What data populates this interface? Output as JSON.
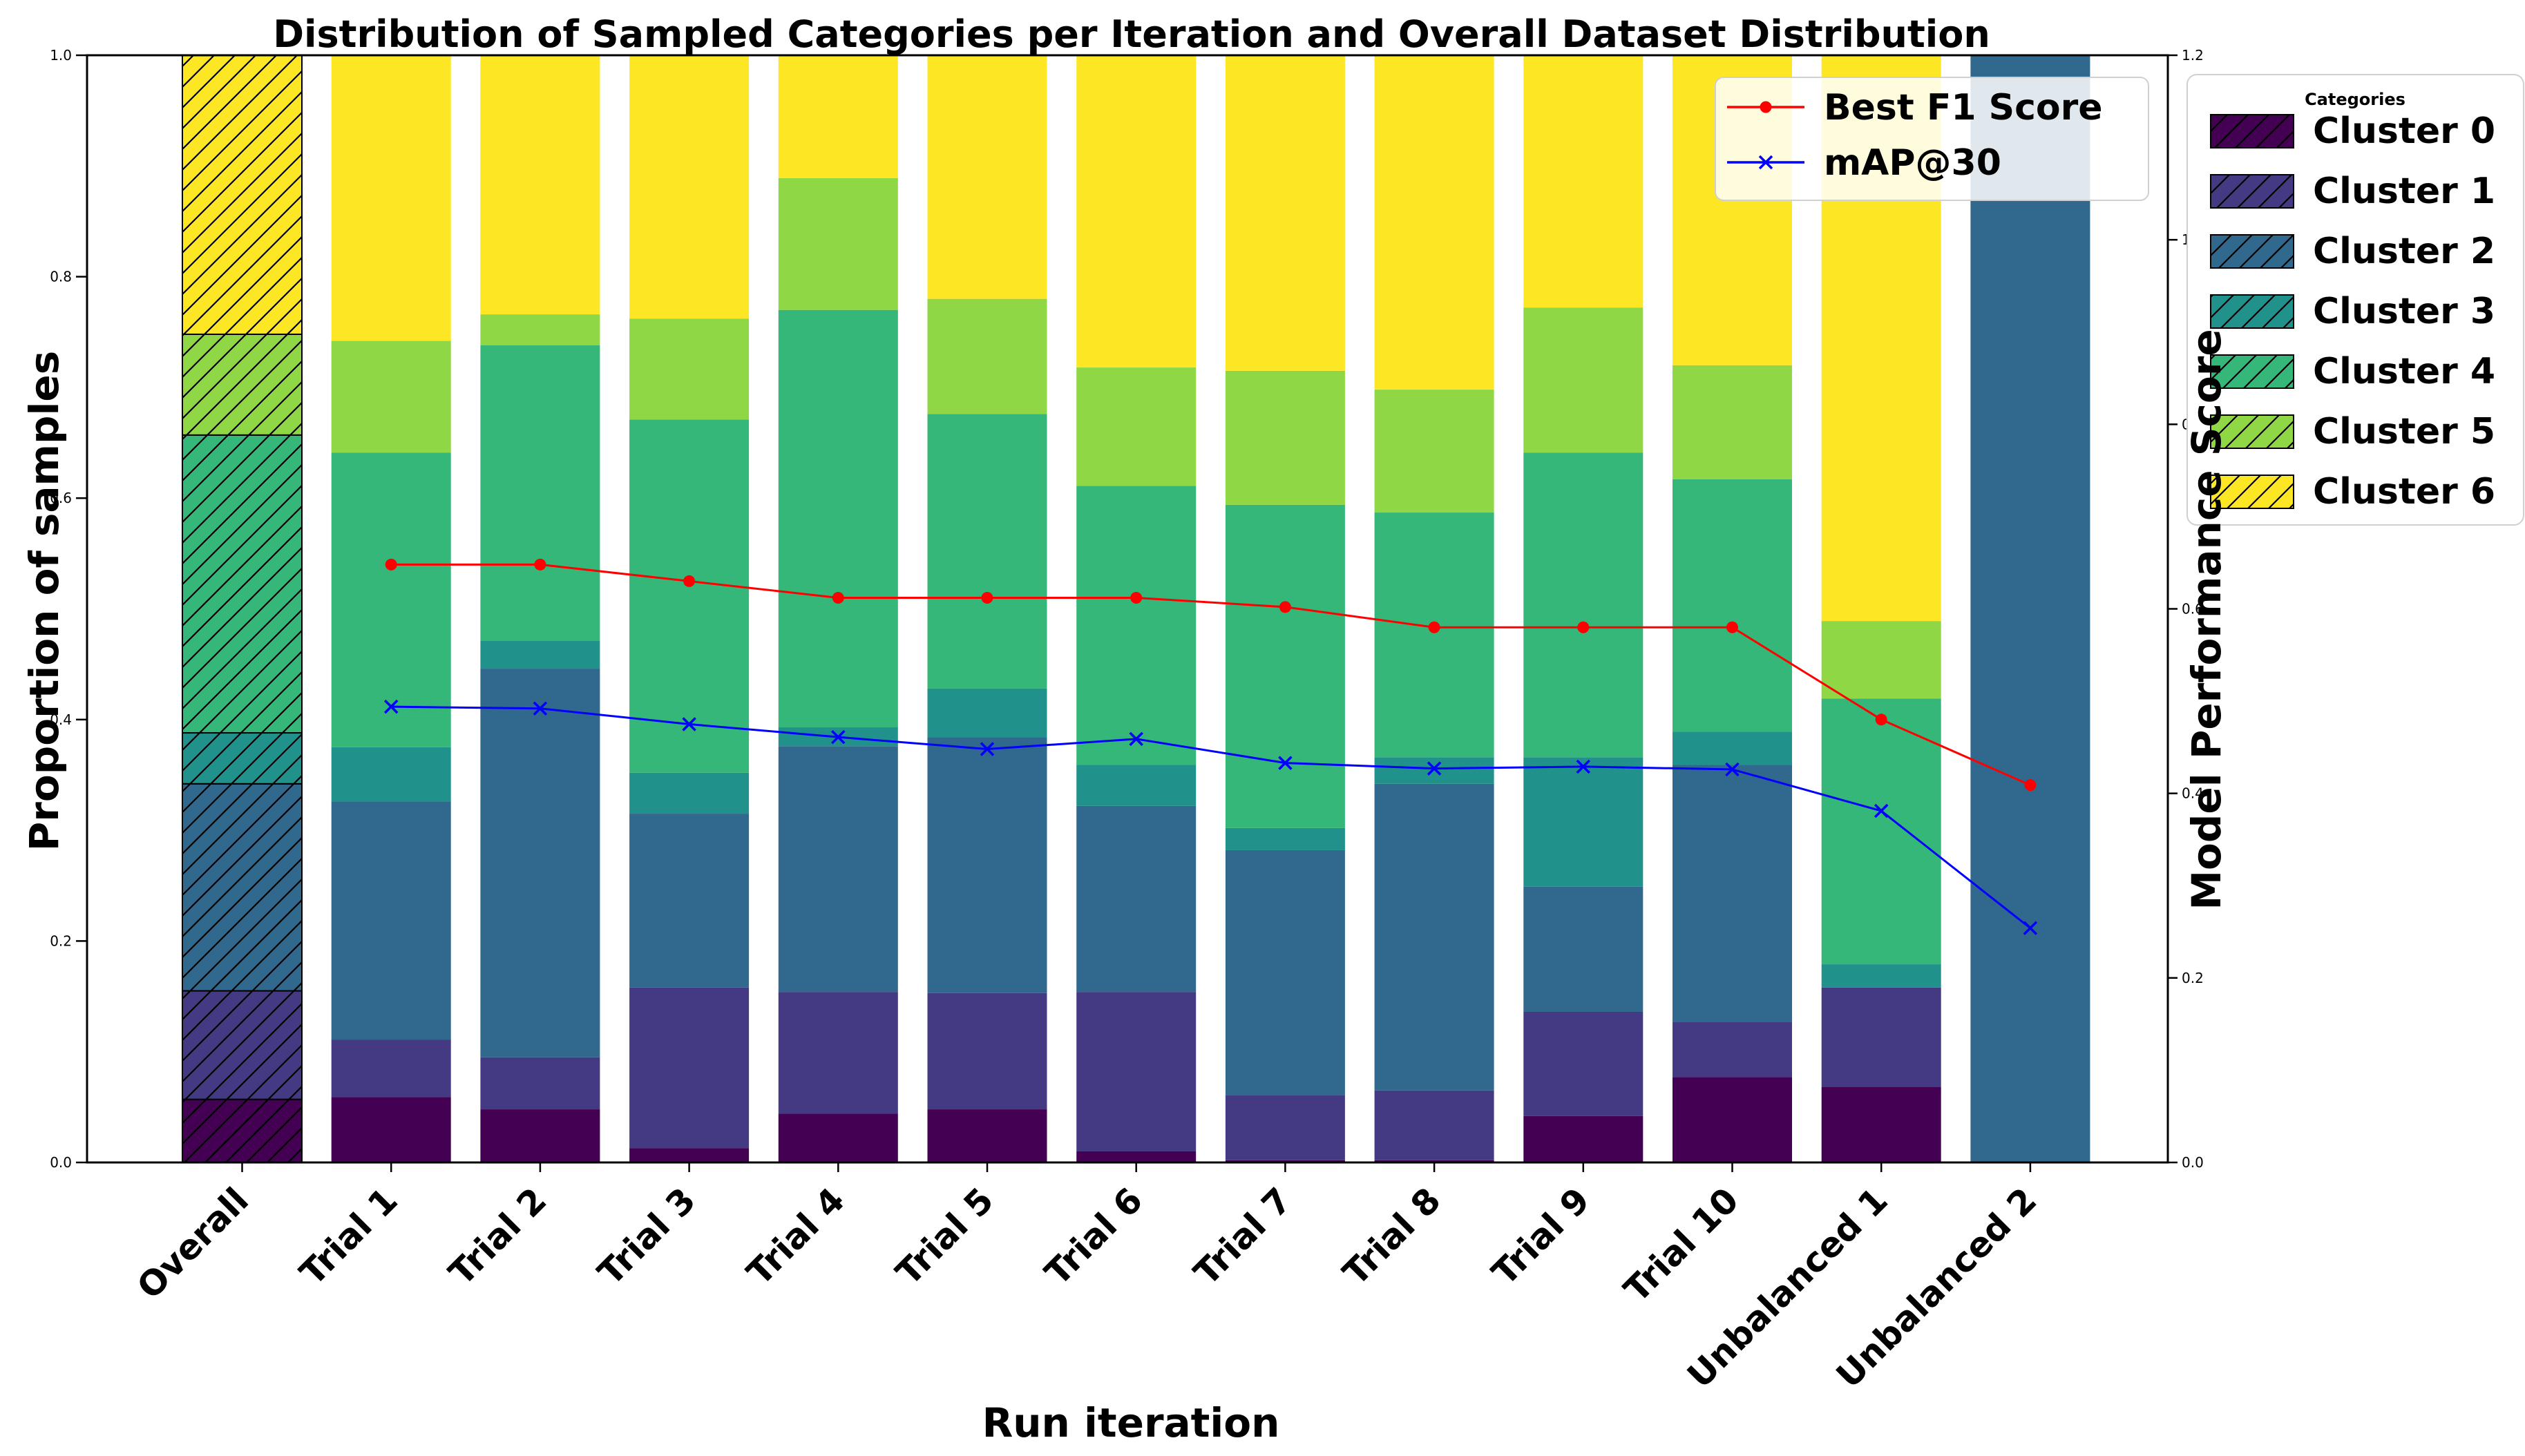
{
  "chart_data": {
    "type": "bar",
    "variant": "stacked-bars-with-overlay-lines",
    "title": "Distribution of Sampled Categories per Iteration and Overall Dataset Distribution",
    "xlabel": "Run iteration",
    "ylabel_left": "Proportion of samples",
    "ylabel_right": "Model Performance Score",
    "categories": [
      "Overall",
      "Trial 1",
      "Trial 2",
      "Trial 3",
      "Trial 4",
      "Trial 5",
      "Trial 6",
      "Trial 7",
      "Trial 8",
      "Trial 9",
      "Trial 10",
      "Unbalanced 1",
      "Unbalanced 2"
    ],
    "hatched_categories": [
      "Overall"
    ],
    "left_axis": {
      "lim": [
        0.0,
        1.0
      ],
      "tick_labels": [
        "0.0",
        "0.2",
        "0.4",
        "0.6",
        "0.8",
        "1.0"
      ],
      "tick_values": [
        0.0,
        0.2,
        0.4,
        0.6,
        0.8,
        1.0
      ]
    },
    "right_axis": {
      "lim": [
        0.0,
        1.2
      ],
      "tick_labels": [
        "0.0",
        "0.2",
        "0.4",
        "0.6",
        "0.8",
        "1.0",
        "1.2"
      ],
      "tick_values": [
        0.0,
        0.2,
        0.4,
        0.6,
        0.8,
        1.0,
        1.2
      ]
    },
    "cluster_legend_title": "Categories",
    "clusters": [
      {
        "name": "Cluster 0",
        "color": "#440154"
      },
      {
        "name": "Cluster 1",
        "color": "#443983"
      },
      {
        "name": "Cluster 2",
        "color": "#31688e"
      },
      {
        "name": "Cluster 3",
        "color": "#21918c"
      },
      {
        "name": "Cluster 4",
        "color": "#35b779"
      },
      {
        "name": "Cluster 5",
        "color": "#8fd744"
      },
      {
        "name": "Cluster 6",
        "color": "#fde725"
      }
    ],
    "stacks": {
      "Overall": [
        0.057,
        0.098,
        0.187,
        0.046,
        0.269,
        0.091,
        0.252
      ],
      "Trial 1": [
        0.059,
        0.052,
        0.215,
        0.049,
        0.266,
        0.101,
        0.258
      ],
      "Trial 2": [
        0.048,
        0.047,
        0.351,
        0.025,
        0.267,
        0.028,
        0.234
      ],
      "Trial 3": [
        0.013,
        0.145,
        0.157,
        0.037,
        0.319,
        0.091,
        0.238
      ],
      "Trial 4": [
        0.044,
        0.11,
        0.222,
        0.017,
        0.377,
        0.119,
        0.111
      ],
      "Trial 5": [
        0.048,
        0.105,
        0.231,
        0.044,
        0.248,
        0.104,
        0.22
      ],
      "Trial 6": [
        0.01,
        0.144,
        0.168,
        0.037,
        0.252,
        0.107,
        0.282
      ],
      "Trial 7": [
        0.002,
        0.059,
        0.221,
        0.02,
        0.292,
        0.121,
        0.285
      ],
      "Trial 8": [
        0.002,
        0.063,
        0.277,
        0.024,
        0.221,
        0.111,
        0.302
      ],
      "Trial 9": [
        0.042,
        0.094,
        0.113,
        0.117,
        0.275,
        0.131,
        0.228
      ],
      "Trial 10": [
        0.077,
        0.05,
        0.232,
        0.03,
        0.228,
        0.103,
        0.28
      ],
      "Unbalanced 1": [
        0.068,
        0.09,
        0.0,
        0.021,
        0.24,
        0.07,
        0.511
      ],
      "Unbalanced 2": [
        0.0,
        0.0,
        1.0,
        0.0,
        0.0,
        0.0,
        0.0
      ]
    },
    "lines": [
      {
        "name": "Best F1 Score",
        "color": "#ff0000",
        "marker": "circle",
        "start_category": "Trial 1",
        "axis": "right",
        "values": [
          0.648,
          0.648,
          0.63,
          0.612,
          0.612,
          0.612,
          0.602,
          0.58,
          0.58,
          0.58,
          0.48,
          0.409
        ]
      },
      {
        "name": "mAP@30",
        "color": "#0000ff",
        "marker": "x",
        "start_category": "Trial 1",
        "axis": "right",
        "values": [
          0.494,
          0.492,
          0.475,
          0.461,
          0.448,
          0.459,
          0.433,
          0.427,
          0.429,
          0.426,
          0.381,
          0.254
        ]
      }
    ],
    "grid": false,
    "background": "#ffffff",
    "legend_positions": {
      "line_legend": "upper right inside plot",
      "cluster_legend": "right of plot"
    }
  }
}
